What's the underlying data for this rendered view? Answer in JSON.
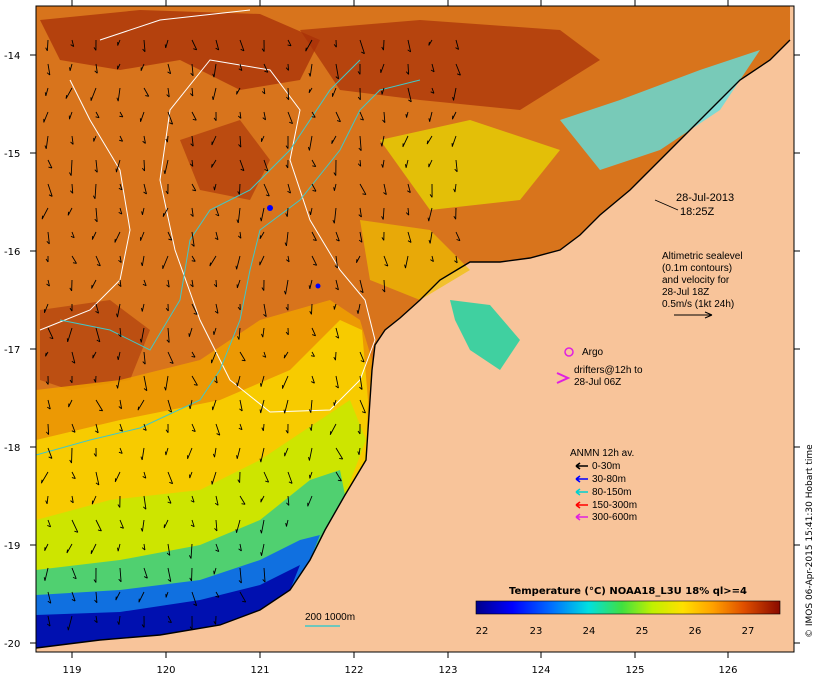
{
  "map": {
    "axes": {
      "x_ticks": [
        "119",
        "120",
        "121",
        "122",
        "123",
        "124",
        "125",
        "126"
      ],
      "y_ticks": [
        "-14",
        "-15",
        "-16",
        "-17",
        "-18",
        "-19",
        "-20"
      ]
    },
    "timestamp": {
      "date": "28-Jul-2013",
      "time": "18:25Z"
    },
    "altimetry_note": {
      "lines": [
        "Altimetric sealevel",
        "(0.1m contours)",
        "and velocity for",
        "28-Jul 18Z",
        "0.5m/s (1kt 24h)"
      ]
    },
    "argo": {
      "label": "Argo",
      "color": "#e020e0"
    },
    "drifters": {
      "lines": [
        "drifters@12h to",
        "28-Jul 06Z"
      ],
      "color": "#e020e0"
    },
    "anmn": {
      "title": "ANMN 12h av.",
      "items": [
        {
          "label": "0-30m",
          "color": "#000000"
        },
        {
          "label": "30-80m",
          "color": "#0000ff"
        },
        {
          "label": "80-150m",
          "color": "#00d0d0"
        },
        {
          "label": "150-300m",
          "color": "#ff0000"
        },
        {
          "label": "300-600m",
          "color": "#e020e0"
        }
      ]
    },
    "bathymetry": {
      "label": "200  1000m",
      "color": "#40c0c0"
    },
    "colorbar": {
      "title": "Temperature (°C) NOAA18_L3U 18% ql>=4",
      "ticks": [
        "22",
        "23",
        "24",
        "25",
        "26",
        "27"
      ]
    },
    "credit": "© IMOS 06-Apr-2015 15:41:30 Hobart time",
    "colors": {
      "land": "#f8c49a",
      "sea_warm": "#d86f1a",
      "coast": "#000000"
    }
  }
}
